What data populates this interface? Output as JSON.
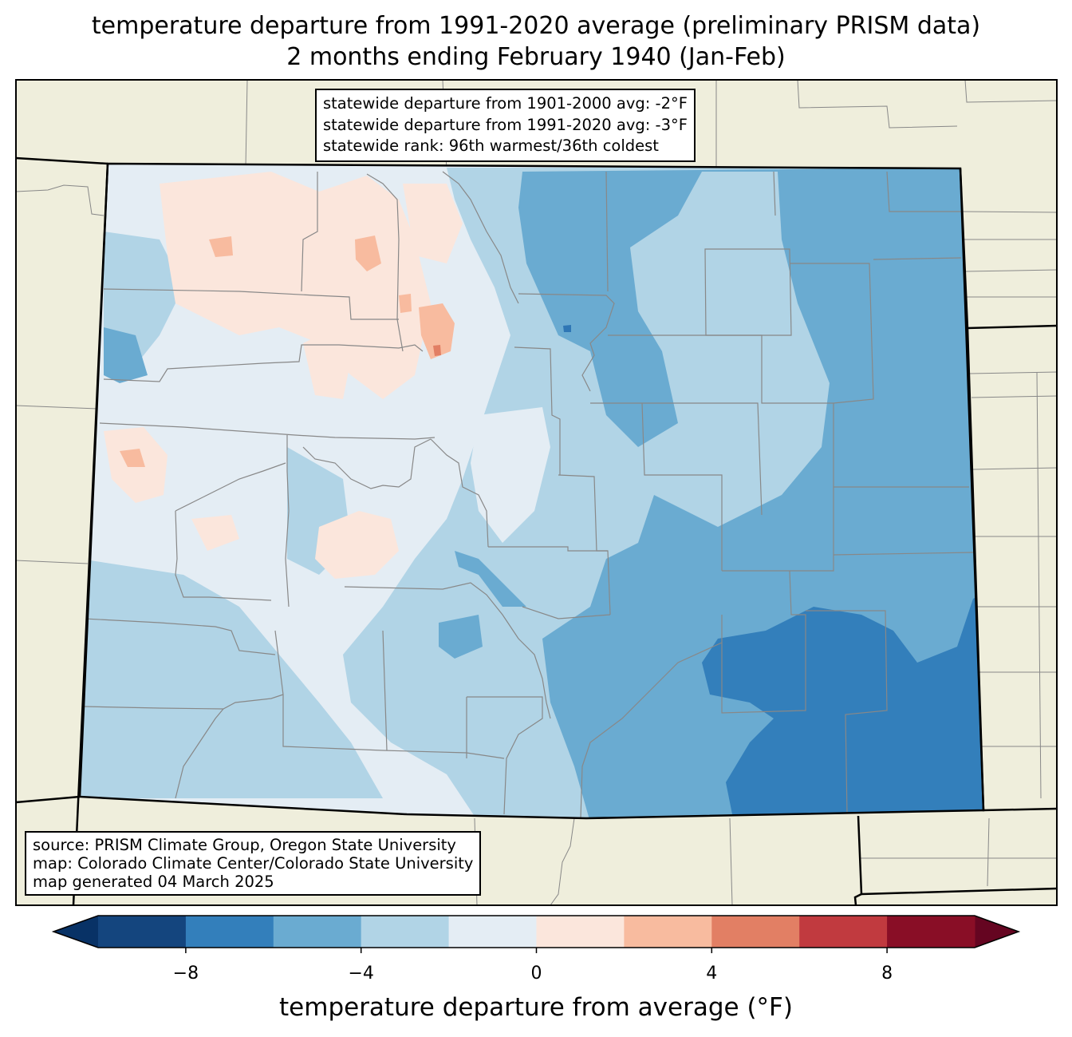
{
  "title": {
    "line1": "temperature departure from 1991-2020 average (preliminary PRISM data)",
    "line2": "2 months ending February 1940 (Jan-Feb)"
  },
  "stats": {
    "departure_1901_2000": "statewide departure from 1901-2000 avg: -2°F",
    "departure_1991_2020": "statewide departure from 1991-2020 avg: -3°F",
    "rank": "statewide rank: 96th warmest/36th coldest"
  },
  "source": {
    "line1": "source: PRISM Climate Group, Oregon State University",
    "line2": "map: Colorado Climate Center/Colorado State University",
    "line3": "map generated 04 March 2025"
  },
  "colorbar": {
    "label": "temperature departure from average (°F)",
    "ticks": [
      "−8",
      "−4",
      "0",
      "4",
      "8"
    ],
    "tick_values": [
      -8,
      -4,
      0,
      4,
      8
    ],
    "range": [
      -10,
      10
    ],
    "bins": [
      {
        "from": -10,
        "to": -8,
        "color": "#14457e"
      },
      {
        "from": -8,
        "to": -6,
        "color": "#337fbb"
      },
      {
        "from": -6,
        "to": -4,
        "color": "#6aabd1"
      },
      {
        "from": -4,
        "to": -2,
        "color": "#b1d4e6"
      },
      {
        "from": -2,
        "to": 0,
        "color": "#e4edf4"
      },
      {
        "from": 0,
        "to": 2,
        "color": "#fbe6dc"
      },
      {
        "from": 2,
        "to": 4,
        "color": "#f8bb9f"
      },
      {
        "from": 4,
        "to": 6,
        "color": "#e27f64"
      },
      {
        "from": 6,
        "to": 8,
        "color": "#c13a3f"
      },
      {
        "from": 8,
        "to": 10,
        "color": "#890e26"
      }
    ],
    "under_color": "#083266",
    "over_color": "#650521"
  },
  "colors": {
    "land": "#efeedc",
    "county_line": "#888888",
    "state_line": "#000000"
  }
}
